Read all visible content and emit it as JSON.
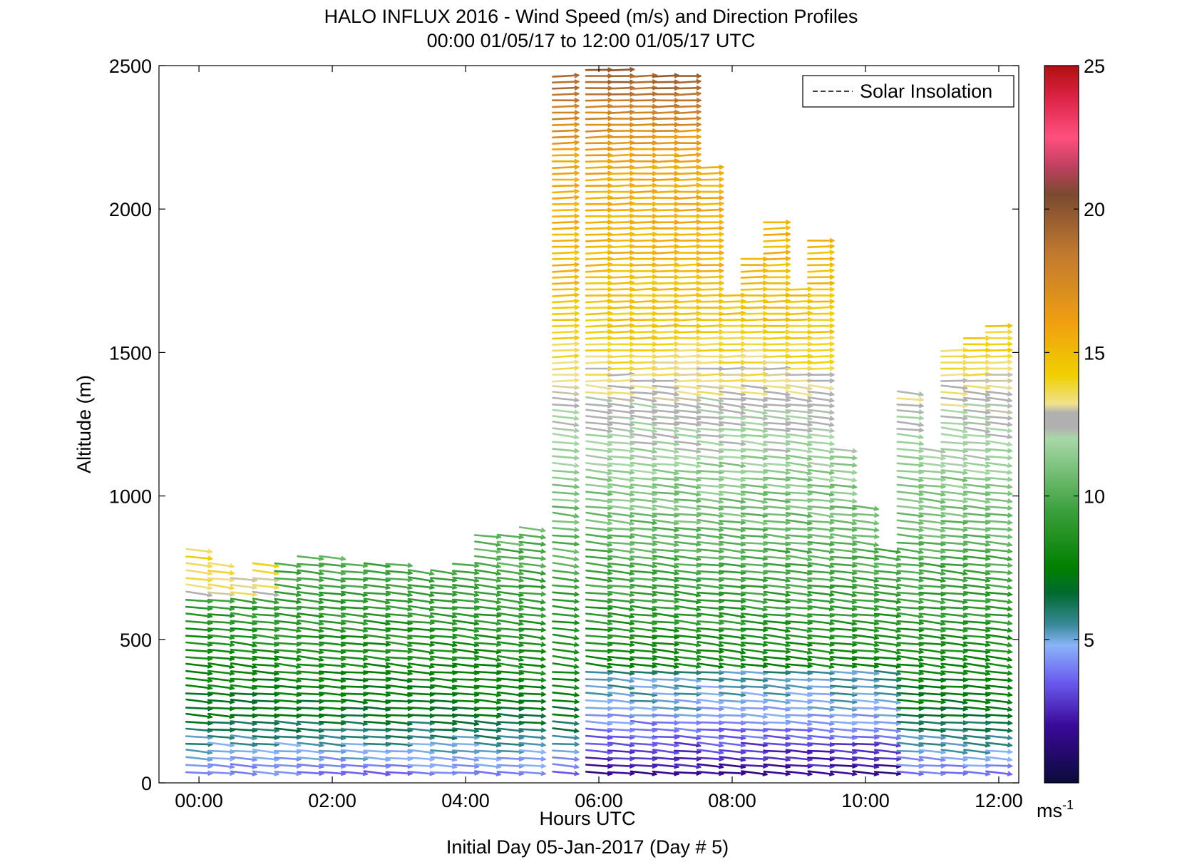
{
  "chart_data": {
    "type": "wind-barb-profile",
    "title": "HALO INFLUX 2016 - Wind Speed (m/s) and Direction Profiles",
    "subtitle": "00:00 01/05/17 to 12:00 01/05/17  UTC",
    "xlabel": "Hours UTC",
    "x_caption": "Initial Day 05-Jan-2017 (Day # 5)",
    "ylabel": "Altitude (m)",
    "xlim_hours": [
      -0.6,
      12.3
    ],
    "ylim": [
      0,
      2500
    ],
    "x_ticks": [
      {
        "value": 0,
        "label": "00:00"
      },
      {
        "value": 2,
        "label": "02:00"
      },
      {
        "value": 4,
        "label": "04:00"
      },
      {
        "value": 6,
        "label": "06:00"
      },
      {
        "value": 8,
        "label": "08:00"
      },
      {
        "value": 10,
        "label": "10:00"
      },
      {
        "value": 12,
        "label": "12:00"
      }
    ],
    "y_ticks": [
      0,
      500,
      1000,
      1500,
      2000,
      2500
    ],
    "legend": {
      "label": "Solar Insolation",
      "placement": "top-right",
      "style": "dashed"
    },
    "colorbar": {
      "range": [
        0,
        25
      ],
      "ticks": [
        5,
        10,
        15,
        20,
        25
      ],
      "unit_label": "ms",
      "unit_exponent": "-1",
      "stops": [
        {
          "v": 0,
          "c": "#0b0b3a"
        },
        {
          "v": 2,
          "c": "#3a0a9a"
        },
        {
          "v": 3.5,
          "c": "#6a5af0"
        },
        {
          "v": 4.8,
          "c": "#8ab4f8"
        },
        {
          "v": 5.5,
          "c": "#3a8a9a"
        },
        {
          "v": 6.6,
          "c": "#006a30"
        },
        {
          "v": 7.5,
          "c": "#008000"
        },
        {
          "v": 9.5,
          "c": "#3ca03c"
        },
        {
          "v": 12.0,
          "c": "#a8d8a8"
        },
        {
          "v": 12.4,
          "c": "#b0b0b0"
        },
        {
          "v": 12.9,
          "c": "#b0b0b0"
        },
        {
          "v": 13.2,
          "c": "#f0e090"
        },
        {
          "v": 14.2,
          "c": "#f0d000"
        },
        {
          "v": 16.0,
          "c": "#f0a010"
        },
        {
          "v": 18.5,
          "c": "#c07830"
        },
        {
          "v": 20.5,
          "c": "#7a4a30"
        },
        {
          "v": 21.5,
          "c": "#c04060"
        },
        {
          "v": 22.5,
          "c": "#ff5080"
        },
        {
          "v": 24.0,
          "c": "#d82040"
        },
        {
          "v": 25,
          "c": "#b01010"
        }
      ]
    },
    "profiles": [
      {
        "t": 0.0,
        "top": 820
      },
      {
        "t": 0.33,
        "top": 760
      },
      {
        "t": 0.67,
        "top": 720
      },
      {
        "t": 1.0,
        "top": 760
      },
      {
        "t": 1.33,
        "top": 780
      },
      {
        "t": 1.67,
        "top": 800
      },
      {
        "t": 2.0,
        "top": 790
      },
      {
        "t": 2.33,
        "top": 780
      },
      {
        "t": 2.67,
        "top": 770
      },
      {
        "t": 3.0,
        "top": 760
      },
      {
        "t": 3.33,
        "top": 750
      },
      {
        "t": 3.67,
        "top": 740
      },
      {
        "t": 4.0,
        "top": 780
      },
      {
        "t": 4.33,
        "top": 860
      },
      {
        "t": 4.67,
        "top": 880
      },
      {
        "t": 5.0,
        "top": 900
      },
      {
        "t": 5.5,
        "top": 2480
      },
      {
        "t": 6.0,
        "top": 2500
      },
      {
        "t": 6.33,
        "top": 2500
      },
      {
        "t": 6.67,
        "top": 2480
      },
      {
        "t": 7.0,
        "top": 2480
      },
      {
        "t": 7.33,
        "top": 2480
      },
      {
        "t": 7.67,
        "top": 2150
      },
      {
        "t": 8.0,
        "top": 1700
      },
      {
        "t": 8.33,
        "top": 1830
      },
      {
        "t": 8.67,
        "top": 1960
      },
      {
        "t": 9.0,
        "top": 1740
      },
      {
        "t": 9.33,
        "top": 1900
      },
      {
        "t": 9.67,
        "top": 1160
      },
      {
        "t": 10.0,
        "top": 960
      },
      {
        "t": 10.33,
        "top": 820
      },
      {
        "t": 10.67,
        "top": 1360
      },
      {
        "t": 11.0,
        "top": 1180
      },
      {
        "t": 11.33,
        "top": 1520
      },
      {
        "t": 11.67,
        "top": 1550
      },
      {
        "t": 12.0,
        "top": 1610
      }
    ]
  }
}
